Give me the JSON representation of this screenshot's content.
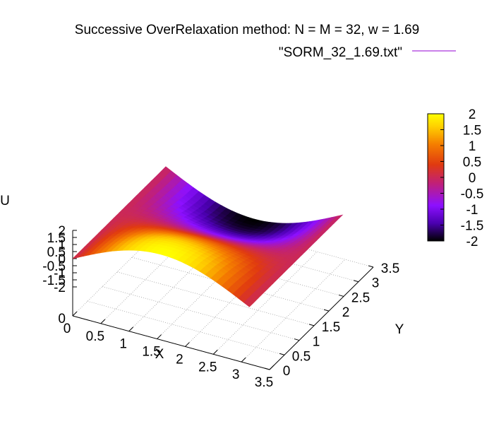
{
  "chart_data": {
    "type": "surface3d",
    "title": "Successive OverRelaxation method: N = M = 32, w = 1.69",
    "legend": {
      "label": "\"SORM_32_1.69.txt\"",
      "color": "#9400d3",
      "placement": "top-right"
    },
    "xlabel": "X",
    "ylabel": "Y",
    "zlabel": "U",
    "xlim": [
      0,
      3.5
    ],
    "ylim": [
      0,
      3.5
    ],
    "zlim": [
      -2,
      2
    ],
    "x_ticks": [
      "0",
      "0.5",
      "1",
      "1.5",
      "2",
      "2.5",
      "3",
      "3.5"
    ],
    "y_ticks": [
      "0",
      "0.5",
      "1",
      "1.5",
      "2",
      "2.5",
      "3",
      "3.5"
    ],
    "z_ticks": [
      "2",
      "1.5",
      "1",
      "0.5",
      "0",
      "-0.5",
      "-1",
      "-1.5",
      "-2"
    ],
    "colorbar": {
      "ticks": [
        "2",
        "1.5",
        "1",
        "0.5",
        "0",
        "-0.5",
        "-1",
        "-1.5",
        "-2"
      ],
      "range": [
        -2,
        2
      ],
      "palette": [
        "#000000",
        "#4b00b0",
        "#8d10ff",
        "#c0207a",
        "#e03a10",
        "#f57e00",
        "#ffd000",
        "#ffff00"
      ]
    },
    "surface": {
      "grid_n": 33,
      "x_range": [
        0,
        3.14159
      ],
      "y_range": [
        0,
        3.14159
      ],
      "function": "u = 2*sin(x)*cos(y)"
    },
    "grid": true
  }
}
